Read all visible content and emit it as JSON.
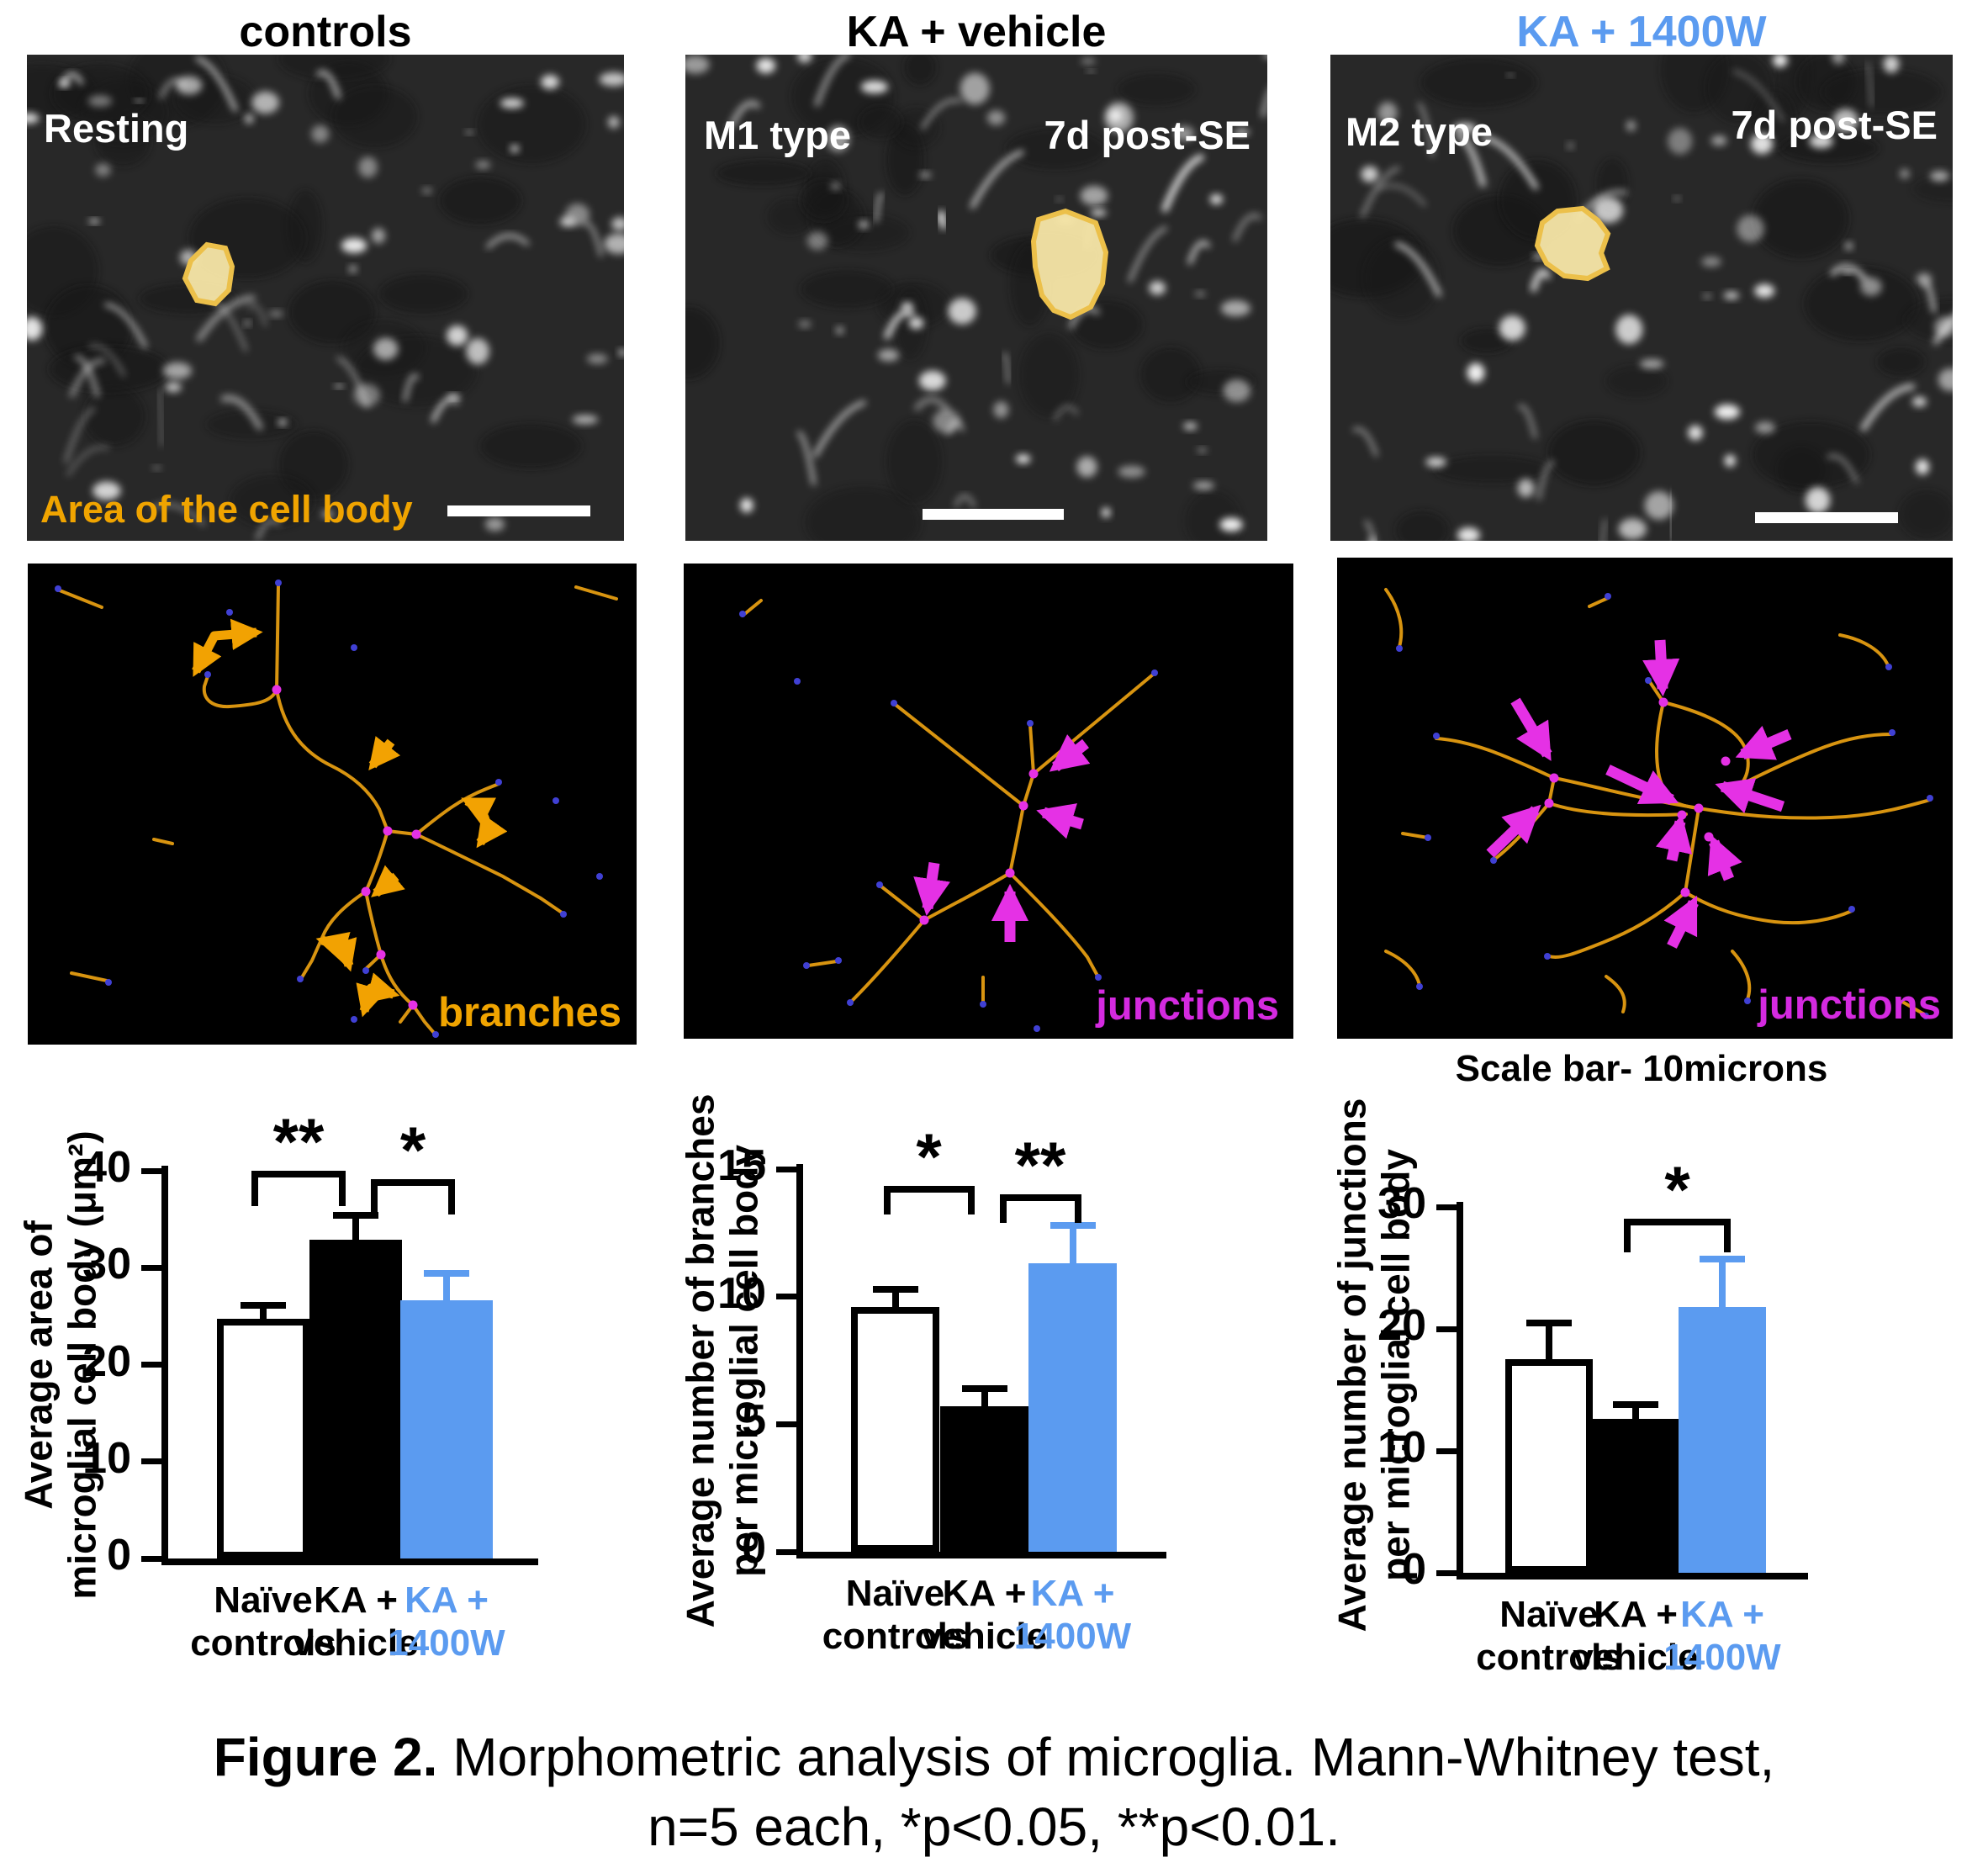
{
  "figure": {
    "scale_bar_note": "Scale bar- 10microns",
    "caption_bold": "Figure 2.",
    "caption_rest": " Morphometric analysis of microglia. Mann-Whitney test,",
    "caption_line2": "n=5 each, *p<0.05, **p<0.01."
  },
  "colors": {
    "accent_blue": "#5b9bf0",
    "branch_orange": "#d89410",
    "arrow_orange": "#f2a202",
    "junction_magenta": "#e531e5",
    "label_magenta": "#d42ae0",
    "label_orange": "#f0a400",
    "cell_body_fill": "#f8e7a8",
    "cell_body_stroke": "#ecc04a"
  },
  "columns": [
    {
      "title": "controls",
      "micro": {
        "top_left": "Resting",
        "top_right": "",
        "bottom_left": "Area of the cell body"
      },
      "skeleton_label": "branches"
    },
    {
      "title": "KA + vehicle",
      "micro": {
        "top_left": "M1 type",
        "top_right": "7d post-SE",
        "bottom_left": ""
      },
      "skeleton_label": "junctions"
    },
    {
      "title": "KA + 1400W",
      "micro": {
        "top_left": "M2 type",
        "top_right": "7d post-SE",
        "bottom_left": ""
      },
      "skeleton_label": "junctions"
    }
  ],
  "chart_data": [
    {
      "type": "bar",
      "ylabel_lines": [
        "Average area of",
        "microglial cell body (μm²)"
      ],
      "categories": [
        [
          "Naïve",
          "controls"
        ],
        [
          "KA +",
          "vehicle"
        ],
        [
          "KA +",
          "1400W"
        ]
      ],
      "category_colors": [
        "#000000",
        "#000000",
        "#5b9bf0"
      ],
      "values": [
        24.7,
        32.9,
        26.6
      ],
      "errors": [
        1.4,
        2.5,
        2.8
      ],
      "bar_colors": [
        "#ffffff",
        "#000000",
        "#5b9bf0"
      ],
      "error_colors": [
        "#000000",
        "#000000",
        "#5b9bf0"
      ],
      "ylim": [
        0,
        40
      ],
      "yticks": [
        0,
        10,
        20,
        30,
        40
      ],
      "grid": false,
      "significance": [
        {
          "from": 0,
          "to": 1,
          "label": "**"
        },
        {
          "from": 1,
          "to": 2,
          "label": "*"
        }
      ]
    },
    {
      "type": "bar",
      "ylabel_lines": [
        "Average number of branches",
        "per microglial cell body"
      ],
      "categories": [
        [
          "Naïve",
          "controls"
        ],
        [
          "KA +",
          "vehicle"
        ],
        [
          "KA +",
          "1400W"
        ]
      ],
      "category_colors": [
        "#000000",
        "#000000",
        "#5b9bf0"
      ],
      "values": [
        9.6,
        5.7,
        11.3
      ],
      "errors": [
        0.7,
        0.7,
        1.5
      ],
      "bar_colors": [
        "#ffffff",
        "#000000",
        "#5b9bf0"
      ],
      "error_colors": [
        "#000000",
        "#000000",
        "#5b9bf0"
      ],
      "ylim": [
        0,
        15
      ],
      "yticks": [
        0,
        5,
        10,
        15
      ],
      "grid": false,
      "significance": [
        {
          "from": 0,
          "to": 1,
          "label": "*"
        },
        {
          "from": 1,
          "to": 2,
          "label": "**"
        }
      ]
    },
    {
      "type": "bar",
      "ylabel_lines": [
        "Average number of junctions",
        "per microglial cell body"
      ],
      "categories": [
        [
          "Naïve",
          "controls"
        ],
        [
          "KA +",
          "vehicle"
        ],
        [
          "KA +",
          "1400W"
        ]
      ],
      "category_colors": [
        "#000000",
        "#000000",
        "#5b9bf0"
      ],
      "values": [
        17.5,
        12.6,
        21.8
      ],
      "errors": [
        3.0,
        1.2,
        3.9
      ],
      "bar_colors": [
        "#ffffff",
        "#000000",
        "#5b9bf0"
      ],
      "error_colors": [
        "#000000",
        "#000000",
        "#5b9bf0"
      ],
      "ylim": [
        0,
        30
      ],
      "yticks": [
        0,
        10,
        20,
        30
      ],
      "grid": false,
      "significance": [
        {
          "from": 1,
          "to": 2,
          "label": "*"
        }
      ]
    }
  ]
}
